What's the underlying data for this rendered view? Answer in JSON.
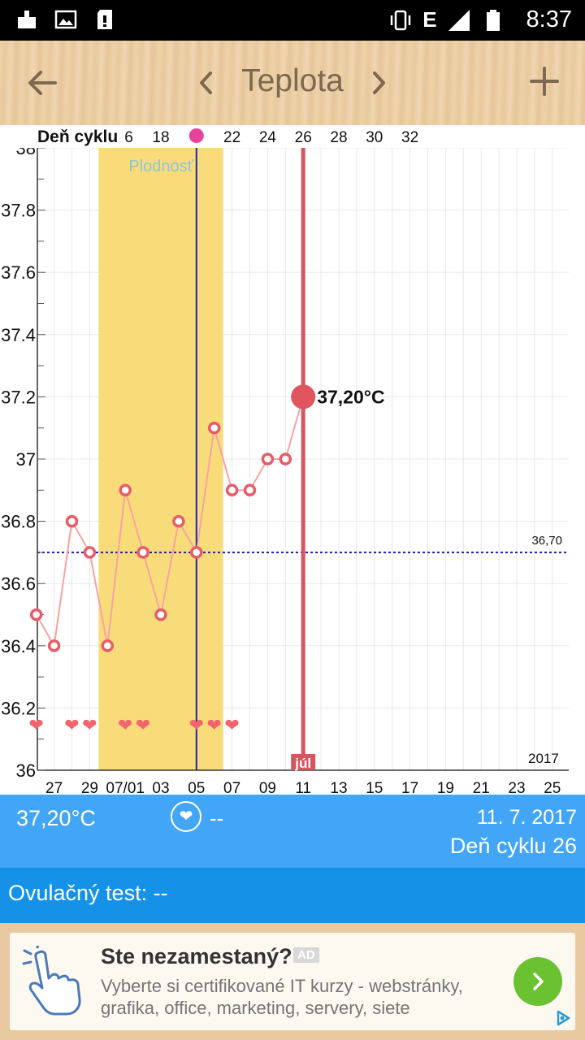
{
  "status_bar": {
    "time": "8:37",
    "network": "E",
    "left_icons": [
      "download-notification-icon",
      "image-notification-icon",
      "sd-card-alert-icon"
    ],
    "right_icons": [
      "vibrate-icon",
      "signal-icon",
      "battery-icon"
    ]
  },
  "app_bar": {
    "title": "Teplota",
    "back_icon": "arrow-back-icon",
    "prev_icon": "chevron-left-icon",
    "next_icon": "chevron-right-icon",
    "add_icon": "plus-icon"
  },
  "chart": {
    "cycle_header_label": "Deň cyklu",
    "fertility_label": "Plodnosť",
    "year_label": "2017",
    "month_marker": "júl",
    "current_value_label": "37,20°C",
    "reference_line_label": "36,70"
  },
  "chart_data": {
    "type": "line",
    "x_date_labels": [
      "27",
      "29",
      "07/01",
      "03",
      "05",
      "07",
      "09",
      "11",
      "13",
      "15",
      "17",
      "19",
      "21",
      "23",
      "25"
    ],
    "cycle_day_labels": [
      "6",
      "18",
      "22",
      "24",
      "26",
      "28",
      "30",
      "32"
    ],
    "y_tick_labels": [
      "36",
      "36.2",
      "36.4",
      "36.6",
      "36.8",
      "37",
      "37.2",
      "37.4",
      "37.6",
      "37.8",
      "38"
    ],
    "ylim": [
      36,
      38
    ],
    "series": [
      {
        "values": [
          36.5,
          36.4,
          36.8,
          36.7,
          36.4,
          36.9,
          36.7,
          36.5,
          36.8,
          36.7,
          37.1,
          36.9,
          36.9,
          37.0,
          37.0,
          37.2
        ]
      }
    ],
    "highlighted_point": {
      "value": 37.2
    },
    "reference_line": {
      "value": 36.7
    },
    "grid": true,
    "colors": {
      "series": "#f08a8a",
      "marker": "#e25865",
      "fertile_window": "#f9dc7a",
      "reference_line": "#1a1aa8",
      "today_line": "#d9545e",
      "ovulation_line": "#2222aa",
      "ovulation_dot": "#e6449b"
    }
  },
  "info_bar": {
    "temperature": "37,20°C",
    "heart_icon": "heart-circle-icon",
    "heart_value": "--",
    "date": "11. 7. 2017",
    "cycle_day": "Deň cyklu 26"
  },
  "test_bar": {
    "label": "Ovulačný test: --"
  },
  "ad": {
    "title": "Ste nezamestaný?",
    "badge": "AD",
    "description": "Vyberte si certifikované IT kurzy - webstránky, grafika, office, marketing, servery, siete",
    "icon": "pointing-hand-icon",
    "action_icon": "chevron-right-icon",
    "choices_icon": "adchoices-icon"
  }
}
